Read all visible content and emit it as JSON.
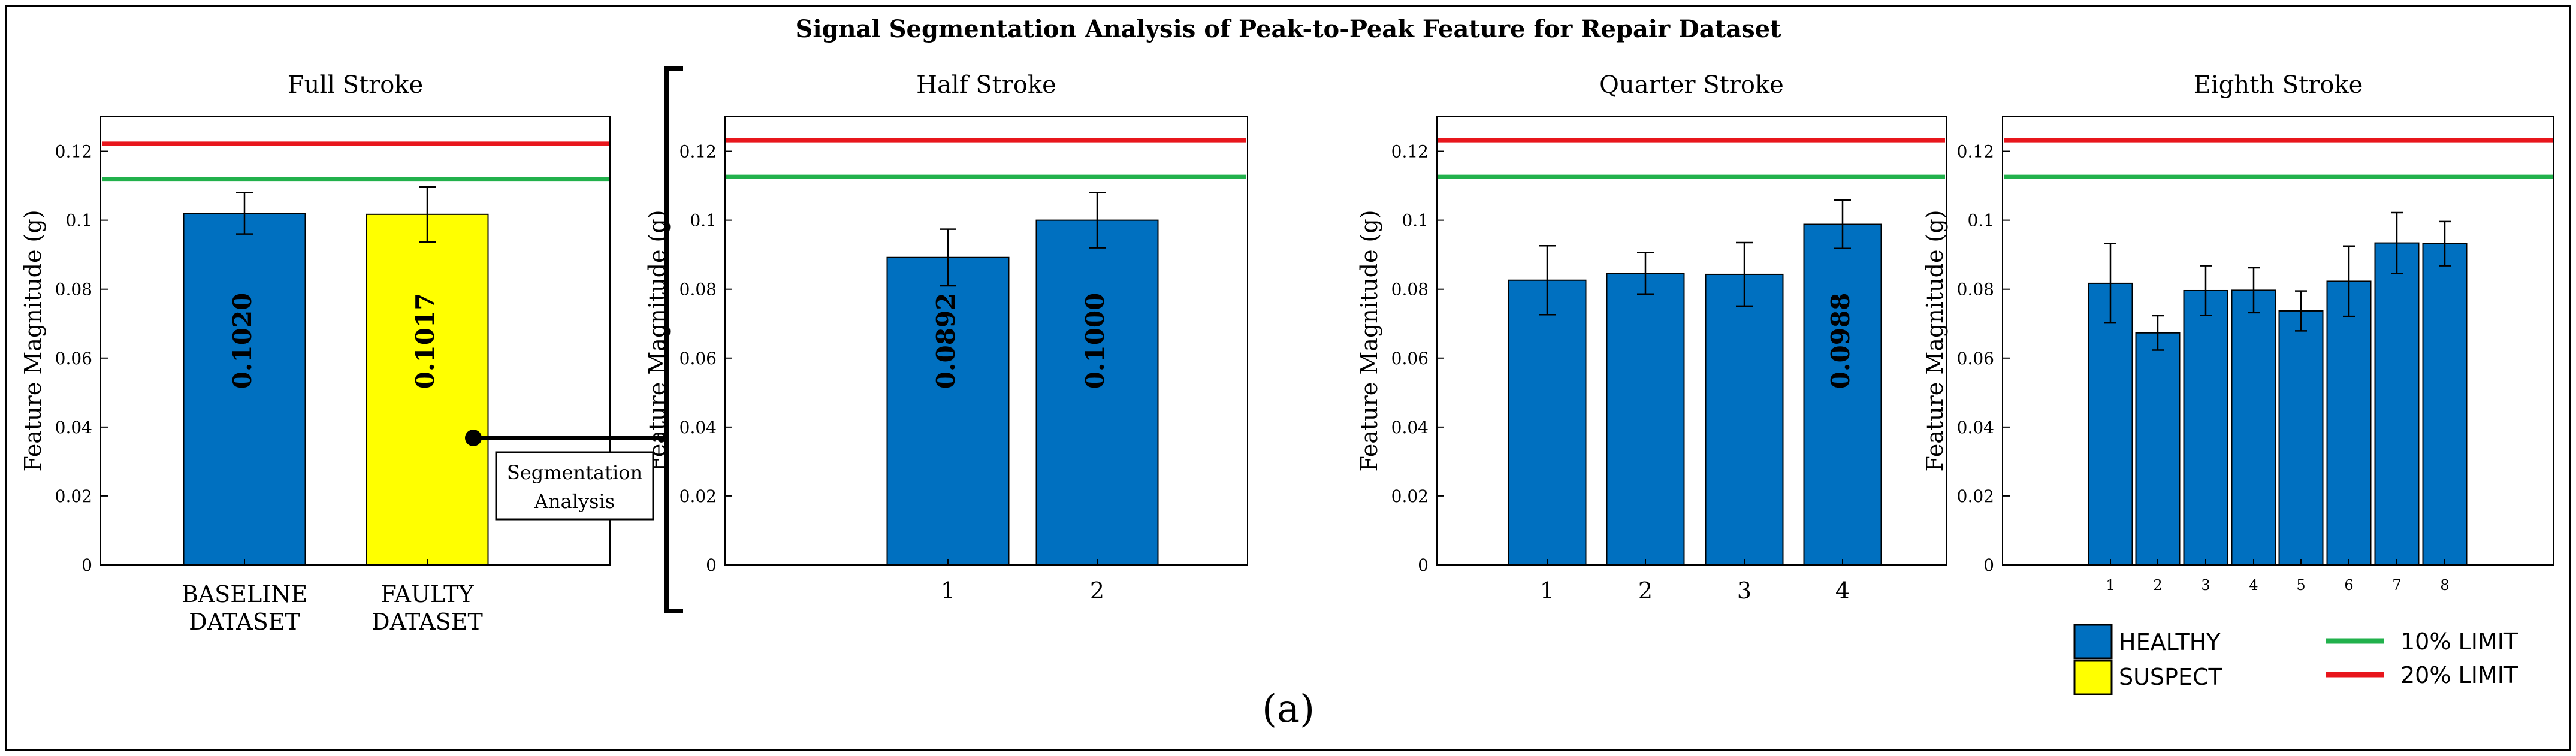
{
  "figure": {
    "title": "Signal Segmentation Analysis of Peak-to-Peak Feature for Repair Dataset",
    "caption": "(a)",
    "callout_line1": "Segmentation",
    "callout_line2": "Analysis"
  },
  "colors": {
    "healthy": "#0070C0",
    "suspect": "#FFFF00",
    "limit10": "#22B14C",
    "limit20": "#E8161C",
    "frame": "#000000"
  },
  "legend": {
    "healthy": "HEALTHY",
    "suspect": "SUSPECT",
    "limit10": "10% LIMIT",
    "limit20": "20% LIMIT"
  },
  "chart_data": [
    {
      "type": "bar",
      "title": "Full Stroke",
      "ylabel": "Feature Magnitude (g)",
      "xlabel": "",
      "ylim": [
        0,
        0.13
      ],
      "yticks": [
        "0",
        "0.02",
        "0.04",
        "0.06",
        "0.08",
        "0.1",
        "0.12"
      ],
      "categories": [
        "BASELINE DATASET",
        "FAULTY DATASET"
      ],
      "category_lines": [
        [
          "BASELINE",
          "DATASET"
        ],
        [
          "FAULTY",
          "DATASET"
        ]
      ],
      "values": [
        0.102,
        0.1017
      ],
      "errors": [
        0.006,
        0.008
      ],
      "bar_status": [
        "healthy",
        "suspect"
      ],
      "value_labels": [
        "0.1020",
        "0.1017"
      ],
      "limit_10": 0.112,
      "limit_20": 0.1222
    },
    {
      "type": "bar",
      "title": "Half Stroke",
      "ylabel": "Feature Magnitude (g)",
      "xlabel": "",
      "ylim": [
        0,
        0.13
      ],
      "yticks": [
        "0",
        "0.02",
        "0.04",
        "0.06",
        "0.08",
        "0.1",
        "0.12"
      ],
      "categories": [
        "1",
        "2"
      ],
      "values": [
        0.0892,
        0.1
      ],
      "errors": [
        0.0082,
        0.008
      ],
      "bar_status": [
        "healthy",
        "healthy"
      ],
      "value_labels": [
        "0.0892",
        "0.1000"
      ],
      "limit_10": 0.1126,
      "limit_20": 0.1232
    },
    {
      "type": "bar",
      "title": "Quarter Stroke",
      "ylabel": "Feature Magnitude (g)",
      "xlabel": "",
      "ylim": [
        0,
        0.13
      ],
      "yticks": [
        "0",
        "0.02",
        "0.04",
        "0.06",
        "0.08",
        "0.1",
        "0.12"
      ],
      "categories": [
        "1",
        "2",
        "3",
        "4"
      ],
      "values": [
        0.0826,
        0.0846,
        0.0843,
        0.0988
      ],
      "errors": [
        0.01,
        0.006,
        0.0092,
        0.007
      ],
      "bar_status": [
        "healthy",
        "healthy",
        "healthy",
        "healthy"
      ],
      "value_labels": [
        "",
        "",
        "",
        "0.0988"
      ],
      "limit_10": 0.1126,
      "limit_20": 0.1232
    },
    {
      "type": "bar",
      "title": "Eighth Stroke",
      "ylabel": "Feature Magnitude (g)",
      "xlabel": "",
      "ylim": [
        0,
        0.13
      ],
      "yticks": [
        "0",
        "0.02",
        "0.04",
        "0.06",
        "0.08",
        "0.1",
        "0.12"
      ],
      "categories": [
        "1",
        "2",
        "3",
        "4",
        "5",
        "6",
        "7",
        "8"
      ],
      "values": [
        0.0817,
        0.0673,
        0.0796,
        0.0797,
        0.0737,
        0.0823,
        0.0934,
        0.0932
      ],
      "errors": [
        0.0115,
        0.005,
        0.0072,
        0.0065,
        0.0058,
        0.0102,
        0.0088,
        0.0064
      ],
      "bar_status": [
        "healthy",
        "healthy",
        "healthy",
        "healthy",
        "healthy",
        "healthy",
        "healthy",
        "healthy"
      ],
      "value_labels": [
        "",
        "",
        "",
        "",
        "",
        "",
        "",
        ""
      ],
      "limit_10": 0.1126,
      "limit_20": 0.1232
    }
  ]
}
